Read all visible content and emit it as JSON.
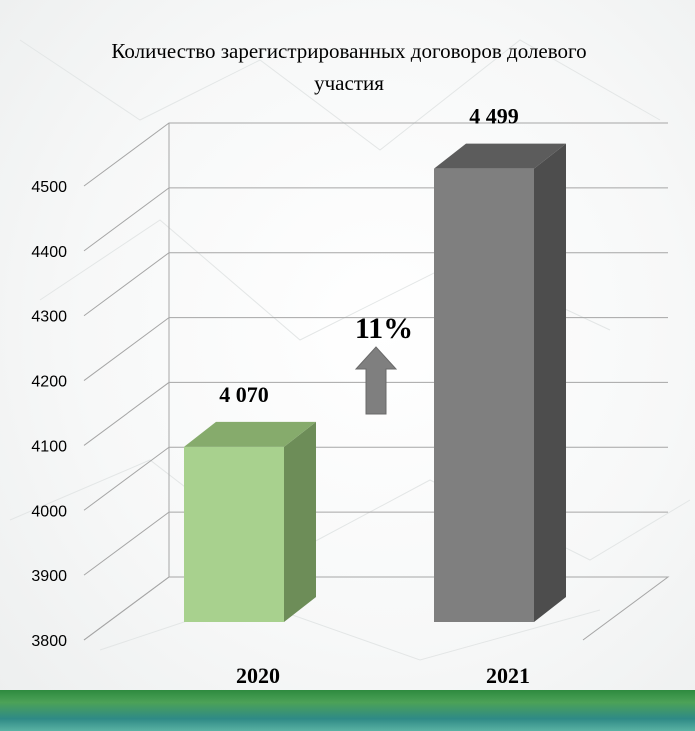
{
  "colors": {
    "bar_2020": "#a8d18e",
    "bar_2021": "#7f7f7f",
    "arrow": "#808080",
    "footer_band": "#3f9c58"
  },
  "annotation": {
    "change_label": "11%",
    "arrow_icon": "arrow-up-icon"
  },
  "chart_data": {
    "type": "bar",
    "title": "Количество зарегистрированных договоров долевого участия",
    "title_lines": [
      "Количество зарегистрированных договоров долевого",
      "участия"
    ],
    "categories": [
      "2020",
      "2021"
    ],
    "values": [
      4070,
      4499
    ],
    "value_labels": [
      "4 070",
      "4 499"
    ],
    "ylim": [
      3800,
      4500
    ],
    "yticks": [
      "3800",
      "3900",
      "4000",
      "4100",
      "4200",
      "4300",
      "4400",
      "4500"
    ],
    "grid": true,
    "legend": "none",
    "three_d": true
  }
}
